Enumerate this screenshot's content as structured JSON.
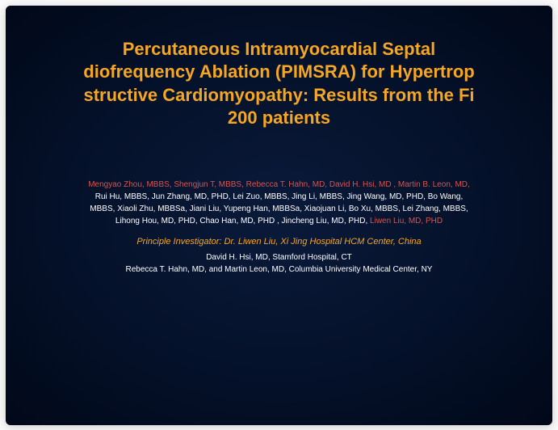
{
  "slide": {
    "background_center": "#0a1a3a",
    "background_edge": "#010818",
    "title_color": "#f5a623",
    "title_fontsize": 22,
    "author_fontsize": 10,
    "pi_color": "#f5a623",
    "white": "#ffffff",
    "red": "#d9534f",
    "title_line1": "Percutaneous Intramyocardial Septal",
    "title_line2": "diofrequency Ablation (PIMSRA) for Hypertrop",
    "title_line3": "structive Cardiomyopathy: Results from the Fi",
    "title_line4": "200 patients",
    "auth_part1": "Mengyao Zhou, MBBS, Shengjun T, MBBS, ",
    "auth_part2": "Rebecca T. Hahn, MD, David H. Hsi, MD , Martin B. Leon, MD,",
    "auth_part3": "Rui Hu, MBBS,  Jun Zhang, MD, PHD, Lei Zuo, MBBS, Jing Li, MBBS, Jing Wang, MD, PHD, Bo Wang,",
    "auth_part4": "MBBS, Xiaoli Zhu, MBBSa, Jiani Liu, Yupeng Han, MBBSa, Xiaojuan Li, Bo Xu, MBBS,  Lei Zhang, MBBS,",
    "auth_part5": "Lihong Hou, MD, PHD, Chao Han, MD, PHD , Jincheng Liu, MD, PHD, ",
    "auth_part6": "Liwen Liu, MD, PHD",
    "pi_line": "Principle Investigator: Dr. Liwen Liu, Xi Jing Hospital HCM Center, China",
    "affil1": "David H. Hsi, MD, Stamford Hospital, CT",
    "affil2": "Rebecca T. Hahn, MD, and Martin Leon, MD, Columbia University Medical Center, NY"
  }
}
